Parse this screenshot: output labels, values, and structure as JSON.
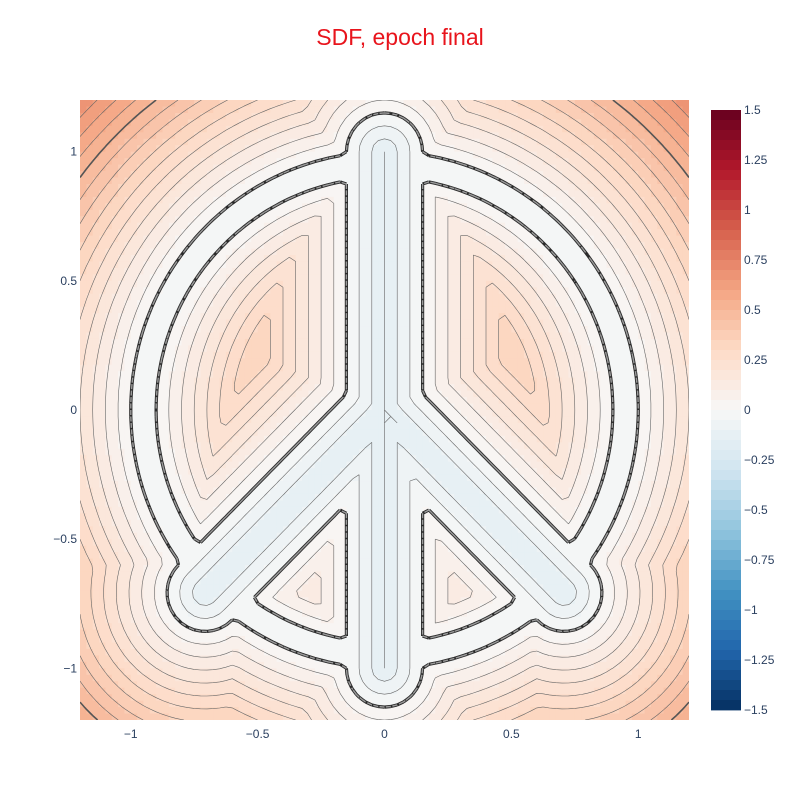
{
  "chart_data": {
    "type": "heatmap",
    "subtype": "contour",
    "title": "SDF, epoch final",
    "title_color": "#e8141c",
    "xlabel": "",
    "ylabel": "",
    "xlim": [
      -1.2,
      1.2
    ],
    "ylim": [
      -1.2,
      1.2
    ],
    "x_ticks": [
      -1,
      -0.5,
      0,
      0.5,
      1
    ],
    "x_tick_labels": [
      "−1",
      "−0.5",
      "0",
      "0.5",
      "1"
    ],
    "y_ticks": [
      1,
      0.5,
      0,
      -0.5,
      -1
    ],
    "y_tick_labels": [
      "1",
      "0.5",
      "0",
      "−0.5",
      "−1"
    ],
    "colorscale": "RdBu_r",
    "zmin": -1.5,
    "zmax": 1.5,
    "contour_step": 0.05,
    "zero_contour": "dashed",
    "colorbar_ticks": [
      1.5,
      1.25,
      1,
      0.75,
      0.5,
      0.25,
      0,
      -0.25,
      -0.5,
      -0.75,
      -1,
      -1.25,
      -1.5
    ],
    "colorbar_tick_labels": [
      "1.5",
      "1.25",
      "1",
      "0.75",
      "0.5",
      "0.25",
      "0",
      "−0.25",
      "−0.5",
      "−0.75",
      "−1",
      "−1.25",
      "−1.5"
    ],
    "shape": {
      "outer_radius": 1.0,
      "ring_inner_radius": 0.9,
      "bar_half_width": 0.15,
      "spoke_half_width": 0.15,
      "spoke_angle_deg": 45
    }
  }
}
